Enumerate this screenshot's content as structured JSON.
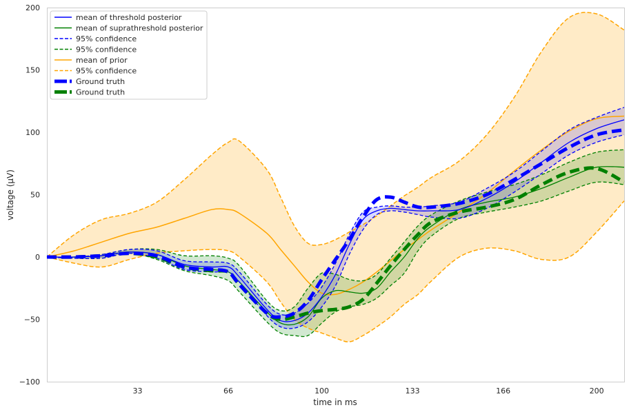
{
  "chart_data": {
    "type": "line",
    "xlabel": "time in ms",
    "ylabel": "voltage (μV)",
    "xlim": [
      0,
      210
    ],
    "ylim": [
      -100,
      200
    ],
    "xticks": [
      33,
      66,
      100,
      133,
      166,
      200
    ],
    "yticks": [
      -100,
      -50,
      0,
      50,
      100,
      150,
      200
    ],
    "grid": false,
    "legend_position": "top-left",
    "colors": {
      "threshold": "#0000ff",
      "suprathreshold": "#008000",
      "prior": "#ffa500",
      "prior_fill": "#ffe7bd"
    },
    "legend": [
      {
        "label": "mean of threshold posterior",
        "color": "#0000ff",
        "style": "solid",
        "width": 1.5
      },
      {
        "label": "mean of suprathreshold posterior",
        "color": "#008000",
        "style": "solid",
        "width": 1.5
      },
      {
        "label": "95% confidence",
        "color": "#0000ff",
        "style": "dashed",
        "width": 1.5
      },
      {
        "label": "95% confidence",
        "color": "#008000",
        "style": "dashed",
        "width": 1.5
      },
      {
        "label": "mean of prior",
        "color": "#ffa500",
        "style": "solid",
        "width": 1.5
      },
      {
        "label": "95% confidence",
        "color": "#ffa500",
        "style": "dashed",
        "width": 1.5
      },
      {
        "label": "Ground truth",
        "color": "#0000ff",
        "style": "thick-dashed",
        "width": 5
      },
      {
        "label": "Ground truth",
        "color": "#008000",
        "style": "thick-dashed",
        "width": 5
      }
    ],
    "x": [
      0,
      10,
      20,
      30,
      40,
      50,
      60,
      66,
      70,
      80,
      85,
      90,
      95,
      100,
      105,
      110,
      115,
      120,
      125,
      130,
      135,
      140,
      150,
      160,
      170,
      180,
      190,
      200,
      210
    ],
    "series": [
      {
        "name": "mean of prior",
        "role": "prior-mean",
        "values": [
          0,
          5,
          12,
          19,
          24,
          31,
          38,
          38,
          35,
          19,
          6,
          -7,
          -20,
          -29,
          -30,
          -26,
          -20,
          -12,
          -3,
          6,
          14,
          22,
          36,
          51,
          69,
          86,
          101,
          111,
          113
        ]
      },
      {
        "name": "prior 95% upper",
        "role": "prior-upper",
        "values": [
          0,
          18,
          30,
          35,
          44,
          62,
          82,
          92,
          93,
          70,
          48,
          25,
          11,
          10,
          14,
          20,
          26,
          33,
          41,
          49,
          56,
          64,
          77,
          98,
          128,
          165,
          192,
          195,
          182
        ]
      },
      {
        "name": "prior 95% lower",
        "role": "prior-lower",
        "values": [
          0,
          -5,
          -8,
          -2,
          3,
          5,
          6,
          5,
          0,
          -20,
          -36,
          -50,
          -57,
          -61,
          -65,
          -68,
          -63,
          -56,
          -48,
          -38,
          -30,
          -19,
          0,
          7,
          5,
          -2,
          0,
          20,
          45
        ]
      },
      {
        "name": "mean of threshold posterior",
        "role": "thr-mean",
        "values": [
          0,
          0,
          1,
          4,
          2,
          -6,
          -8,
          -8,
          -16,
          -42,
          -51,
          -51,
          -45,
          -32,
          -14,
          10,
          30,
          37,
          39,
          38,
          37,
          37,
          38,
          47,
          60,
          76,
          92,
          103,
          110
        ]
      },
      {
        "name": "threshold 95% upper",
        "role": "thr-upper",
        "values": [
          0,
          0,
          2,
          6,
          5,
          -3,
          -4,
          -5,
          -12,
          -38,
          -46,
          -45,
          -37,
          -24,
          -5,
          18,
          36,
          40,
          41,
          40,
          40,
          41,
          44,
          55,
          68,
          85,
          102,
          112,
          120
        ]
      },
      {
        "name": "threshold 95% lower",
        "role": "thr-lower",
        "values": [
          0,
          -1,
          -1,
          3,
          -1,
          -10,
          -12,
          -12,
          -20,
          -47,
          -56,
          -57,
          -52,
          -40,
          -23,
          2,
          22,
          34,
          37,
          36,
          34,
          32,
          31,
          39,
          52,
          67,
          82,
          92,
          98
        ]
      },
      {
        "name": "mean of suprathreshold posterior",
        "role": "sup-mean",
        "values": [
          0,
          0,
          1,
          4,
          2,
          -7,
          -10,
          -12,
          -20,
          -44,
          -53,
          -54,
          -48,
          -33,
          -27,
          -28,
          -29,
          -25,
          -12,
          0,
          15,
          25,
          38,
          44,
          48,
          55,
          64,
          72,
          72
        ]
      },
      {
        "name": "suprathreshold 95% upper",
        "role": "sup-upper",
        "values": [
          0,
          0,
          2,
          6,
          6,
          1,
          1,
          -1,
          -7,
          -35,
          -43,
          -40,
          -25,
          -13,
          -14,
          -18,
          -19,
          -14,
          -1,
          12,
          25,
          34,
          45,
          52,
          58,
          66,
          76,
          84,
          86
        ]
      },
      {
        "name": "suprathreshold 95% lower",
        "role": "sup-lower",
        "values": [
          0,
          -1,
          -1,
          3,
          -2,
          -11,
          -15,
          -19,
          -28,
          -52,
          -61,
          -63,
          -63,
          -53,
          -44,
          -40,
          -38,
          -33,
          -23,
          -13,
          5,
          17,
          31,
          36,
          40,
          45,
          53,
          60,
          58
        ]
      },
      {
        "name": "Ground truth",
        "role": "gt-threshold",
        "values": [
          0,
          0,
          1,
          3,
          1,
          -8,
          -10,
          -12,
          -22,
          -45,
          -48,
          -45,
          -35,
          -18,
          -2,
          14,
          32,
          46,
          48,
          44,
          40,
          40,
          43,
          50,
          62,
          75,
          88,
          98,
          102
        ]
      },
      {
        "name": "Ground truth",
        "role": "gt-supra",
        "values": [
          0,
          0,
          1,
          3,
          0,
          -8,
          -11,
          -12,
          -22,
          -45,
          -50,
          -48,
          -45,
          -43,
          -42,
          -40,
          -34,
          -21,
          -7,
          6,
          18,
          28,
          36,
          40,
          46,
          58,
          68,
          71,
          60
        ]
      }
    ]
  }
}
